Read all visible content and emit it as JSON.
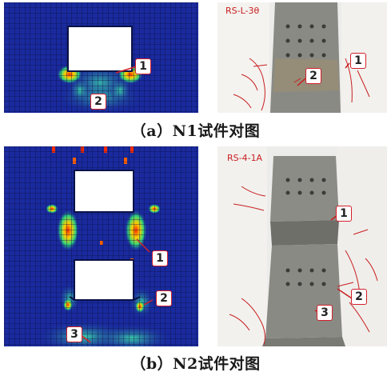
{
  "figure_a": {
    "caption": "（a）N1试件对图",
    "fem_callouts": [
      "1",
      "2"
    ],
    "photo_label": "RS-L-3θ",
    "photo_callouts": [
      "2",
      "1"
    ]
  },
  "figure_b": {
    "caption": "（b）N2试件对图",
    "fem_callouts": [
      "1",
      "2",
      "3"
    ],
    "photo_label": "RS-4-1A",
    "photo_callouts": [
      "1",
      "2",
      "3"
    ]
  },
  "colors": {
    "fem_background": "#1a2a9e",
    "fem_grid": "#0b1247",
    "callout_border": "#d3202a",
    "photo_background": "#ececea",
    "concrete": "#8a8a84",
    "crack_marks": "#c81e1e"
  }
}
